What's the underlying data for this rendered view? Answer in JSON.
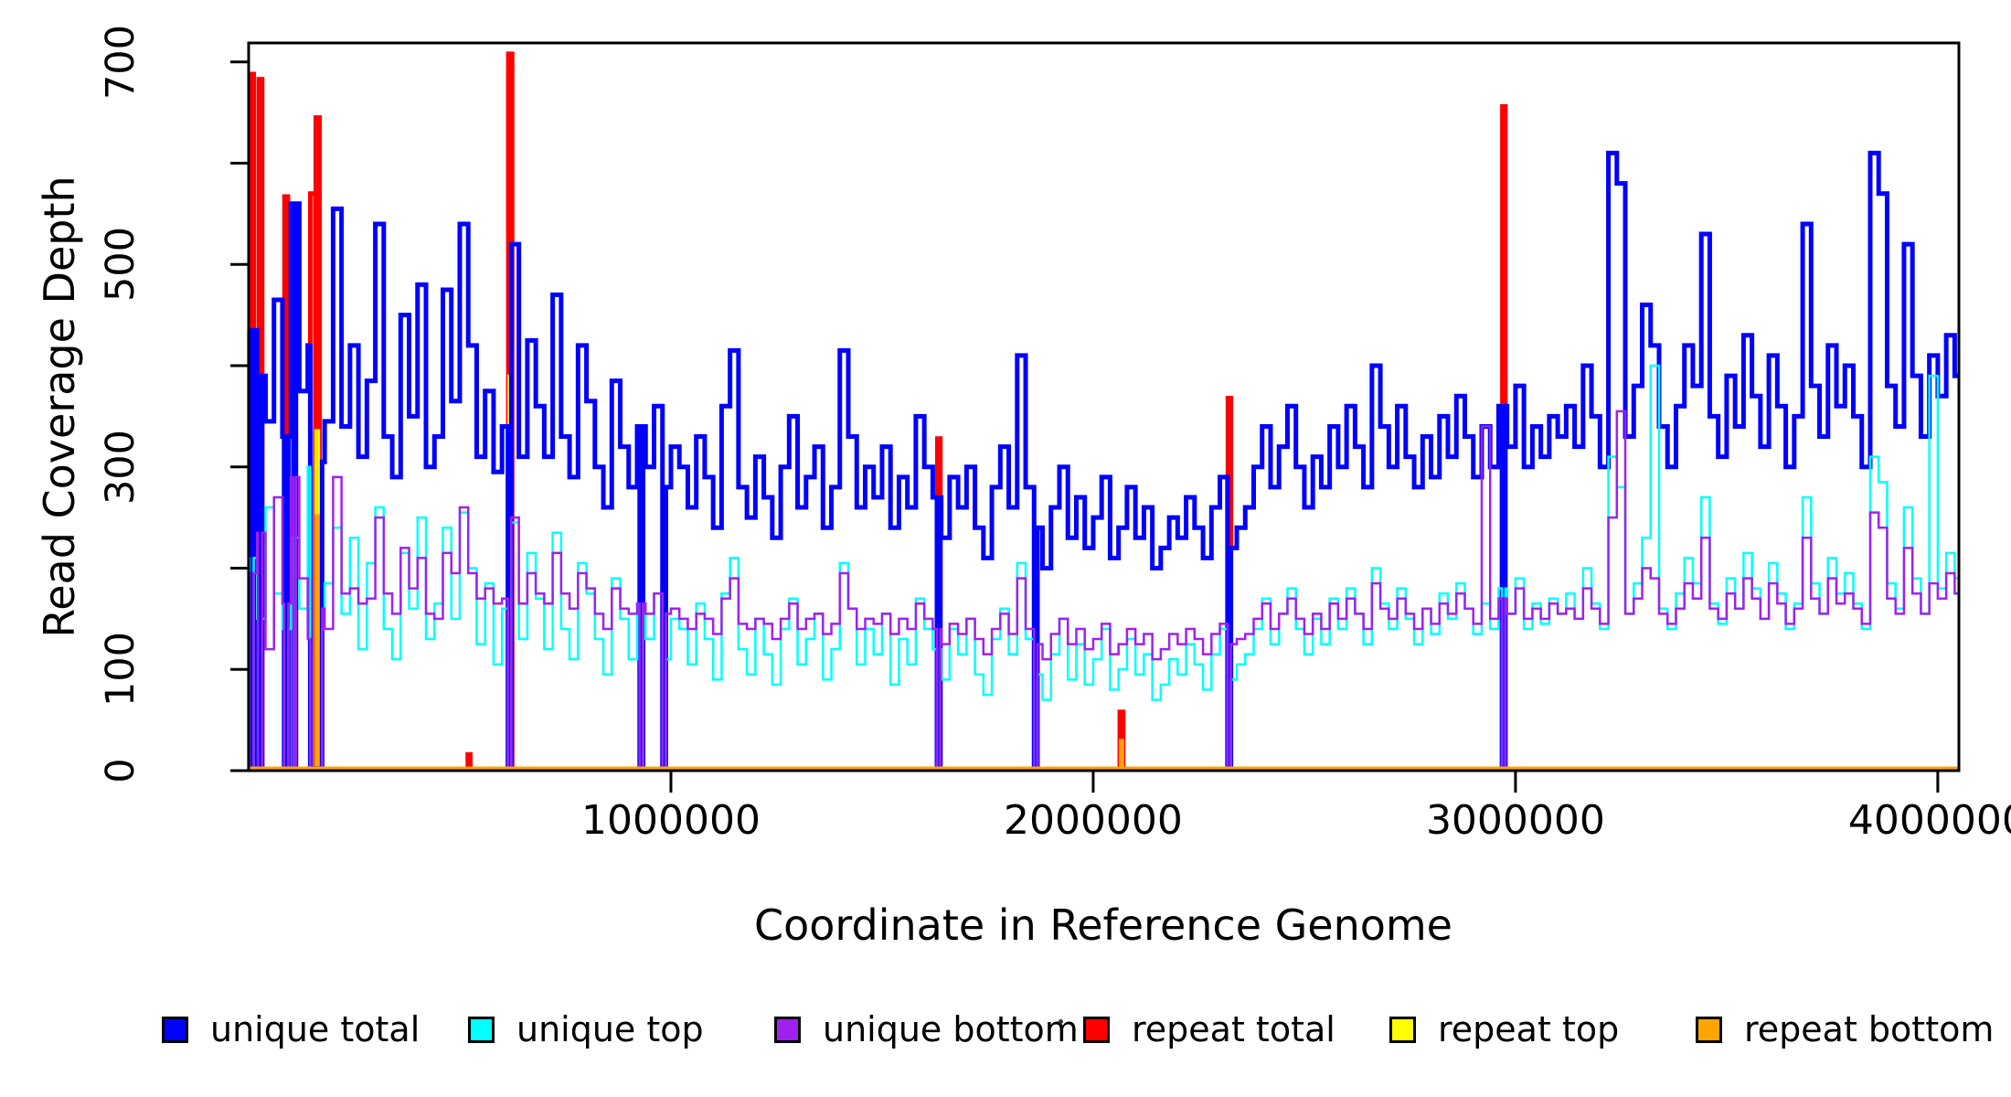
{
  "chart_data": {
    "type": "step-line",
    "title": "",
    "xlabel": "Coordinate in Reference Genome",
    "ylabel": "Read Coverage Depth",
    "x_axis": {
      "range_units": [
        0,
        4050000
      ],
      "tick_values": [
        1000000,
        2000000,
        3000000,
        4000000
      ],
      "tick_labels": [
        "1000000",
        "2000000",
        "3000000",
        "4000000"
      ]
    },
    "y_axis": {
      "range": [
        0,
        719
      ],
      "tick_values": [
        0,
        100,
        200,
        300,
        400,
        500,
        600,
        700
      ],
      "labeled_ticks": [
        {
          "value": 0,
          "text": "0"
        },
        {
          "value": 100,
          "text": "100"
        },
        {
          "value": 300,
          "text": "300"
        },
        {
          "value": 500,
          "text": "500"
        },
        {
          "value": 700,
          "text": "700"
        }
      ]
    },
    "step_width_units": 20000,
    "zero_coverage_regions": [
      [
        2000,
        12000
      ],
      [
        22000,
        32000
      ],
      [
        84000,
        94000
      ],
      [
        106000,
        112000
      ],
      [
        146000,
        174000
      ],
      [
        614000,
        622000
      ],
      [
        926000,
        934000
      ],
      [
        980000,
        988000
      ],
      [
        1630000,
        1638000
      ],
      [
        1860000,
        1868000
      ],
      [
        2318000,
        2326000
      ],
      [
        2968000,
        2976000
      ]
    ],
    "series": [
      {
        "name": "unique total",
        "color": "#0000FF",
        "style": "step",
        "line_width": 5,
        "values": [
          435,
          390,
          345,
          465,
          330,
          560,
          375,
          420,
          305,
          345,
          555,
          340,
          420,
          310,
          385,
          540,
          330,
          290,
          450,
          350,
          480,
          300,
          330,
          475,
          365,
          540,
          420,
          310,
          375,
          295,
          340,
          520,
          310,
          425,
          360,
          310,
          470,
          330,
          290,
          420,
          365,
          300,
          260,
          385,
          320,
          280,
          340,
          300,
          360,
          280,
          320,
          300,
          260,
          330,
          290,
          240,
          360,
          415,
          280,
          250,
          310,
          270,
          230,
          300,
          350,
          260,
          290,
          320,
          240,
          280,
          415,
          330,
          260,
          300,
          270,
          320,
          240,
          290,
          260,
          350,
          300,
          270,
          230,
          290,
          260,
          300,
          240,
          210,
          280,
          320,
          260,
          410,
          280,
          240,
          200,
          260,
          300,
          230,
          270,
          220,
          250,
          290,
          210,
          240,
          280,
          230,
          260,
          200,
          220,
          250,
          230,
          270,
          240,
          210,
          260,
          290,
          220,
          240,
          260,
          300,
          340,
          280,
          320,
          360,
          300,
          260,
          310,
          280,
          340,
          300,
          360,
          320,
          280,
          400,
          340,
          300,
          360,
          310,
          280,
          330,
          290,
          350,
          310,
          370,
          330,
          290,
          340,
          300,
          360,
          320,
          380,
          300,
          340,
          310,
          350,
          330,
          360,
          320,
          400,
          350,
          300,
          610,
          580,
          330,
          380,
          460,
          420,
          340,
          300,
          360,
          420,
          380,
          530,
          350,
          310,
          390,
          340,
          430,
          370,
          320,
          410,
          360,
          300,
          350,
          540,
          380,
          330,
          420,
          360,
          400,
          350,
          300,
          610,
          570,
          380,
          340,
          520,
          390,
          330,
          410,
          370,
          430,
          390,
          350,
          420,
          380,
          540,
          510
        ]
      },
      {
        "name": "unique top",
        "color": "#00FFFF",
        "style": "step",
        "line_width": 2.5,
        "values": [
          210,
          150,
          260,
          175,
          140,
          230,
          160,
          300,
          140,
          185,
          240,
          155,
          230,
          120,
          205,
          260,
          140,
          110,
          215,
          160,
          250,
          130,
          165,
          240,
          150,
          255,
          200,
          125,
          185,
          105,
          160,
          245,
          130,
          215,
          170,
          120,
          235,
          140,
          110,
          205,
          175,
          130,
          95,
          190,
          150,
          110,
          165,
          130,
          175,
          110,
          150,
          140,
          105,
          165,
          130,
          90,
          175,
          210,
          120,
          95,
          150,
          115,
          85,
          140,
          170,
          105,
          130,
          155,
          90,
          120,
          205,
          160,
          105,
          140,
          115,
          155,
          85,
          130,
          105,
          170,
          140,
          120,
          90,
          140,
          115,
          150,
          95,
          75,
          130,
          160,
          115,
          205,
          130,
          95,
          70,
          115,
          150,
          90,
          125,
          85,
          110,
          140,
          80,
          100,
          130,
          95,
          115,
          70,
          85,
          110,
          95,
          125,
          105,
          80,
          115,
          140,
          90,
          105,
          115,
          140,
          170,
          125,
          155,
          180,
          140,
          115,
          150,
          125,
          170,
          140,
          180,
          155,
          125,
          200,
          165,
          140,
          180,
          150,
          125,
          160,
          135,
          175,
          150,
          185,
          160,
          135,
          165,
          140,
          180,
          155,
          190,
          140,
          165,
          145,
          170,
          155,
          175,
          150,
          200,
          165,
          140,
          310,
          280,
          155,
          185,
          230,
          400,
          160,
          140,
          175,
          210,
          185,
          270,
          165,
          145,
          190,
          160,
          215,
          180,
          150,
          205,
          175,
          140,
          165,
          270,
          185,
          155,
          210,
          175,
          195,
          165,
          140,
          310,
          285,
          185,
          160,
          260,
          190,
          155,
          390,
          180,
          215,
          190,
          165,
          260,
          230,
          270,
          250
        ]
      },
      {
        "name": "unique bottom",
        "color": "#A020F0",
        "style": "step",
        "line_width": 2.5,
        "values": [
          195,
          235,
          120,
          270,
          165,
          290,
          190,
          130,
          160,
          140,
          290,
          175,
          180,
          165,
          170,
          250,
          175,
          155,
          220,
          180,
          210,
          155,
          150,
          215,
          195,
          260,
          195,
          170,
          180,
          165,
          170,
          250,
          165,
          195,
          175,
          165,
          215,
          175,
          160,
          195,
          180,
          155,
          140,
          180,
          160,
          155,
          165,
          155,
          175,
          155,
          160,
          150,
          140,
          155,
          150,
          135,
          170,
          190,
          145,
          140,
          150,
          145,
          130,
          150,
          165,
          140,
          150,
          155,
          135,
          145,
          195,
          160,
          140,
          150,
          145,
          155,
          135,
          150,
          140,
          165,
          150,
          140,
          125,
          145,
          135,
          150,
          130,
          115,
          140,
          155,
          135,
          190,
          140,
          125,
          110,
          135,
          150,
          125,
          140,
          120,
          130,
          145,
          115,
          125,
          140,
          125,
          135,
          110,
          120,
          135,
          125,
          140,
          130,
          115,
          135,
          145,
          125,
          130,
          135,
          150,
          165,
          140,
          155,
          170,
          150,
          135,
          155,
          140,
          165,
          150,
          170,
          155,
          140,
          185,
          160,
          150,
          170,
          155,
          140,
          160,
          145,
          165,
          155,
          175,
          160,
          145,
          340,
          150,
          170,
          155,
          180,
          150,
          160,
          150,
          165,
          155,
          160,
          150,
          180,
          160,
          145,
          250,
          355,
          155,
          170,
          200,
          190,
          155,
          145,
          160,
          185,
          170,
          230,
          160,
          150,
          175,
          160,
          190,
          170,
          150,
          185,
          165,
          145,
          160,
          230,
          170,
          155,
          190,
          165,
          175,
          160,
          145,
          255,
          240,
          170,
          155,
          220,
          175,
          155,
          185,
          170,
          195,
          175,
          160,
          230,
          210,
          235,
          225
        ]
      },
      {
        "name": "repeat total",
        "color": "#FF0000",
        "style": "spikes",
        "line_width": 5,
        "baseline": 2,
        "spikes": [
          [
            4000,
            8000,
            688
          ],
          [
            24000,
            8000,
            683
          ],
          [
            85000,
            8000,
            567
          ],
          [
            146000,
            12000,
            570
          ],
          [
            159000,
            9000,
            645
          ],
          [
            519000,
            6000,
            16
          ],
          [
            615000,
            9000,
            708
          ],
          [
            1631000,
            7000,
            328
          ],
          [
            2063000,
            8000,
            58
          ],
          [
            2319000,
            7000,
            368
          ],
          [
            2969000,
            7000,
            656
          ]
        ]
      },
      {
        "name": "repeat top",
        "color": "#FFFF00",
        "style": "spikes",
        "line_width": 3,
        "baseline": 2,
        "spikes": [
          [
            5000,
            5000,
            372
          ],
          [
            86000,
            6000,
            321
          ],
          [
            159000,
            7000,
            336
          ],
          [
            616000,
            6000,
            390
          ],
          [
            2970000,
            5000,
            345
          ]
        ]
      },
      {
        "name": "repeat bottom",
        "color": "#FFA500",
        "style": "spikes",
        "line_width": 3,
        "baseline": 2,
        "baseline_full_width": true,
        "spikes": [
          [
            5000,
            5000,
            312
          ],
          [
            86000,
            6000,
            243
          ],
          [
            159000,
            7000,
            252
          ],
          [
            616000,
            6000,
            300
          ],
          [
            2064000,
            6000,
            30
          ],
          [
            2970000,
            5000,
            285
          ]
        ]
      }
    ],
    "legend": {
      "position": "bottom",
      "entries": [
        "unique total",
        "unique top",
        "unique bottom",
        "repeat total",
        "repeat top",
        "repeat bottom"
      ]
    }
  }
}
